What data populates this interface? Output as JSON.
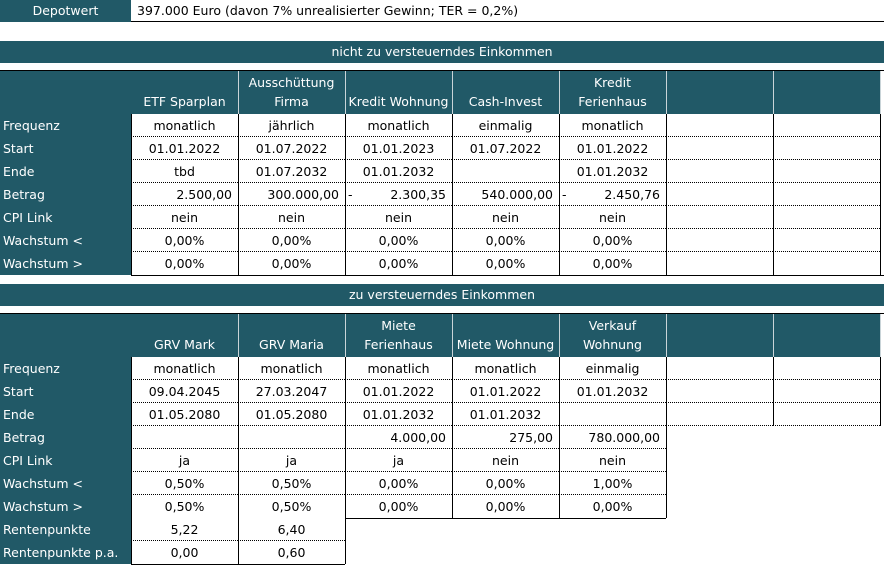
{
  "depot": {
    "label": "Depotwert",
    "value": "397.000 Euro (davon 7% unrealisierter Gewinn; TER = 0,2%)"
  },
  "section1": {
    "title": "nicht zu versteuerndes Einkommen",
    "columns": [
      {
        "line1": "",
        "line2": "ETF Sparplan"
      },
      {
        "line1": "Ausschüttung",
        "line2": "Firma"
      },
      {
        "line1": "",
        "line2": "Kredit Wohnung"
      },
      {
        "line1": "",
        "line2": "Cash-Invest"
      },
      {
        "line1": "Kredit",
        "line2": "Ferienhaus"
      },
      {
        "line1": "",
        "line2": ""
      },
      {
        "line1": "",
        "line2": ""
      }
    ],
    "rows": [
      {
        "label": "Frequenz",
        "cells": [
          "monatlich",
          "jährlich",
          "monatlich",
          "einmalig",
          "monatlich",
          "",
          ""
        ]
      },
      {
        "label": "Start",
        "cells": [
          "01.01.2022",
          "01.07.2022",
          "01.01.2023",
          "01.07.2022",
          "01.01.2022",
          "",
          ""
        ]
      },
      {
        "label": "Ende",
        "cells": [
          "tbd",
          "01.07.2032",
          "01.01.2032",
          "",
          "01.01.2032",
          "",
          ""
        ]
      },
      {
        "label": "Betrag",
        "cells": [
          "2.500,00",
          "300.000,00",
          "2.300,35",
          "540.000,00",
          "2.450,76",
          "",
          ""
        ],
        "minus": [
          false,
          false,
          true,
          false,
          true,
          false,
          false
        ]
      },
      {
        "label": "CPI Link",
        "cells": [
          "nein",
          "nein",
          "nein",
          "nein",
          "nein",
          "",
          ""
        ]
      },
      {
        "label": "Wachstum <",
        "cells": [
          "0,00%",
          "0,00%",
          "0,00%",
          "0,00%",
          "0,00%",
          "",
          ""
        ]
      },
      {
        "label": "Wachstum >",
        "cells": [
          "0,00%",
          "0,00%",
          "0,00%",
          "0,00%",
          "0,00%",
          "",
          ""
        ]
      }
    ],
    "minus_sign": "-"
  },
  "section2": {
    "title": "zu versteuerndes Einkommen",
    "columns": [
      {
        "line1": "",
        "line2": "GRV Mark"
      },
      {
        "line1": "",
        "line2": "GRV Maria"
      },
      {
        "line1": "Miete",
        "line2": "Ferienhaus"
      },
      {
        "line1": "",
        "line2": "Miete Wohnung"
      },
      {
        "line1": "Verkauf",
        "line2": "Wohnung"
      },
      {
        "line1": "",
        "line2": ""
      },
      {
        "line1": "",
        "line2": ""
      }
    ],
    "rows": [
      {
        "label": "Frequenz",
        "cells": [
          "monatlich",
          "monatlich",
          "monatlich",
          "monatlich",
          "einmalig"
        ]
      },
      {
        "label": "Start",
        "cells": [
          "09.04.2045",
          "27.03.2047",
          "01.01.2022",
          "01.01.2022",
          "01.01.2032"
        ]
      },
      {
        "label": "Ende",
        "cells": [
          "01.05.2080",
          "01.05.2080",
          "01.01.2032",
          "01.01.2032",
          ""
        ]
      },
      {
        "label": "Betrag",
        "cells": [
          "",
          "",
          "4.000,00",
          "275,00",
          "780.000,00"
        ]
      },
      {
        "label": "CPI Link",
        "cells": [
          "ja",
          "ja",
          "ja",
          "nein",
          "nein"
        ]
      },
      {
        "label": "Wachstum <",
        "cells": [
          "0,50%",
          "0,50%",
          "0,00%",
          "0,00%",
          "1,00%"
        ]
      },
      {
        "label": "Wachstum >",
        "cells": [
          "0,50%",
          "0,50%",
          "0,00%",
          "0,00%",
          "0,00%"
        ]
      },
      {
        "label": "Rentenpunkte",
        "cells": [
          "5,22",
          "6,40"
        ]
      },
      {
        "label": "Rentenpunkte p.a.",
        "cells": [
          "0,00",
          "0,60"
        ]
      }
    ]
  },
  "colors": {
    "teal": "#215967",
    "white": "#ffffff"
  }
}
